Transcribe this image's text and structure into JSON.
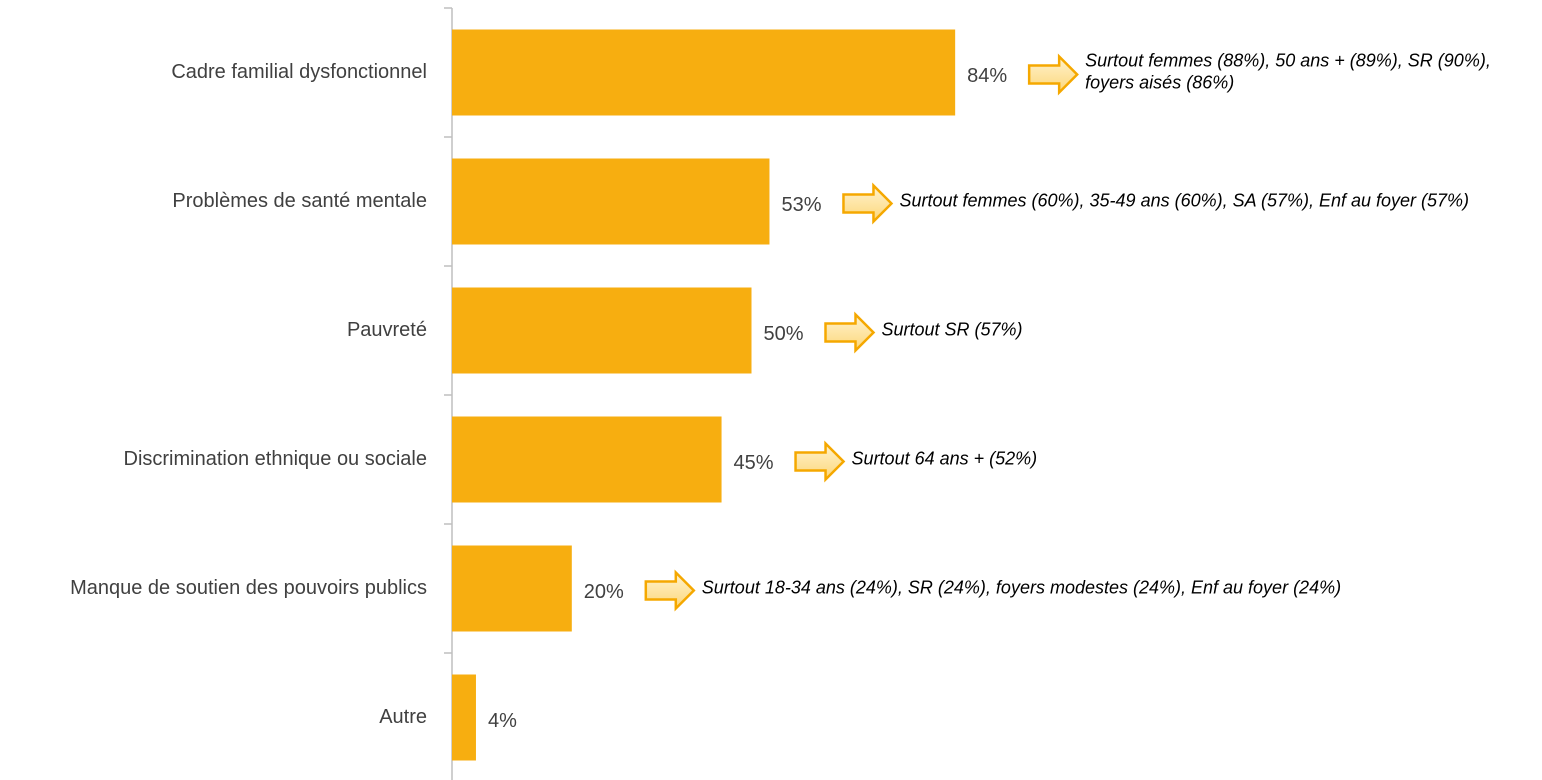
{
  "chart_data": {
    "type": "barh",
    "categories": [
      "Cadre familial dysfonctionnel",
      "Problèmes de santé mentale",
      "Pauvreté",
      "Discrimination ethnique ou sociale",
      "Manque de soutien des pouvoirs publics",
      "Autre"
    ],
    "values": [
      84,
      53,
      50,
      45,
      20,
      4
    ],
    "value_labels": [
      "84%",
      "53%",
      "50%",
      "45%",
      "20%",
      "4%"
    ],
    "annotations": [
      [
        "Surtout femmes (88%), 50 ans + (89%), SR (90%),",
        "foyers aisés (86%)"
      ],
      [
        "Surtout femmes (60%), 35-49 ans (60%), SA (57%), Enf au foyer (57%)"
      ],
      [
        "Surtout SR (57%)"
      ],
      [
        "Surtout 64 ans + (52%)"
      ],
      [
        "Surtout 18-34 ans (24%), SR (24%), foyers modestes (24%), Enf au foyer (24%)"
      ],
      []
    ],
    "color": "#f7ae10",
    "arrow_fill": "#fde7a6",
    "arrow_stroke": "#f5a800"
  }
}
